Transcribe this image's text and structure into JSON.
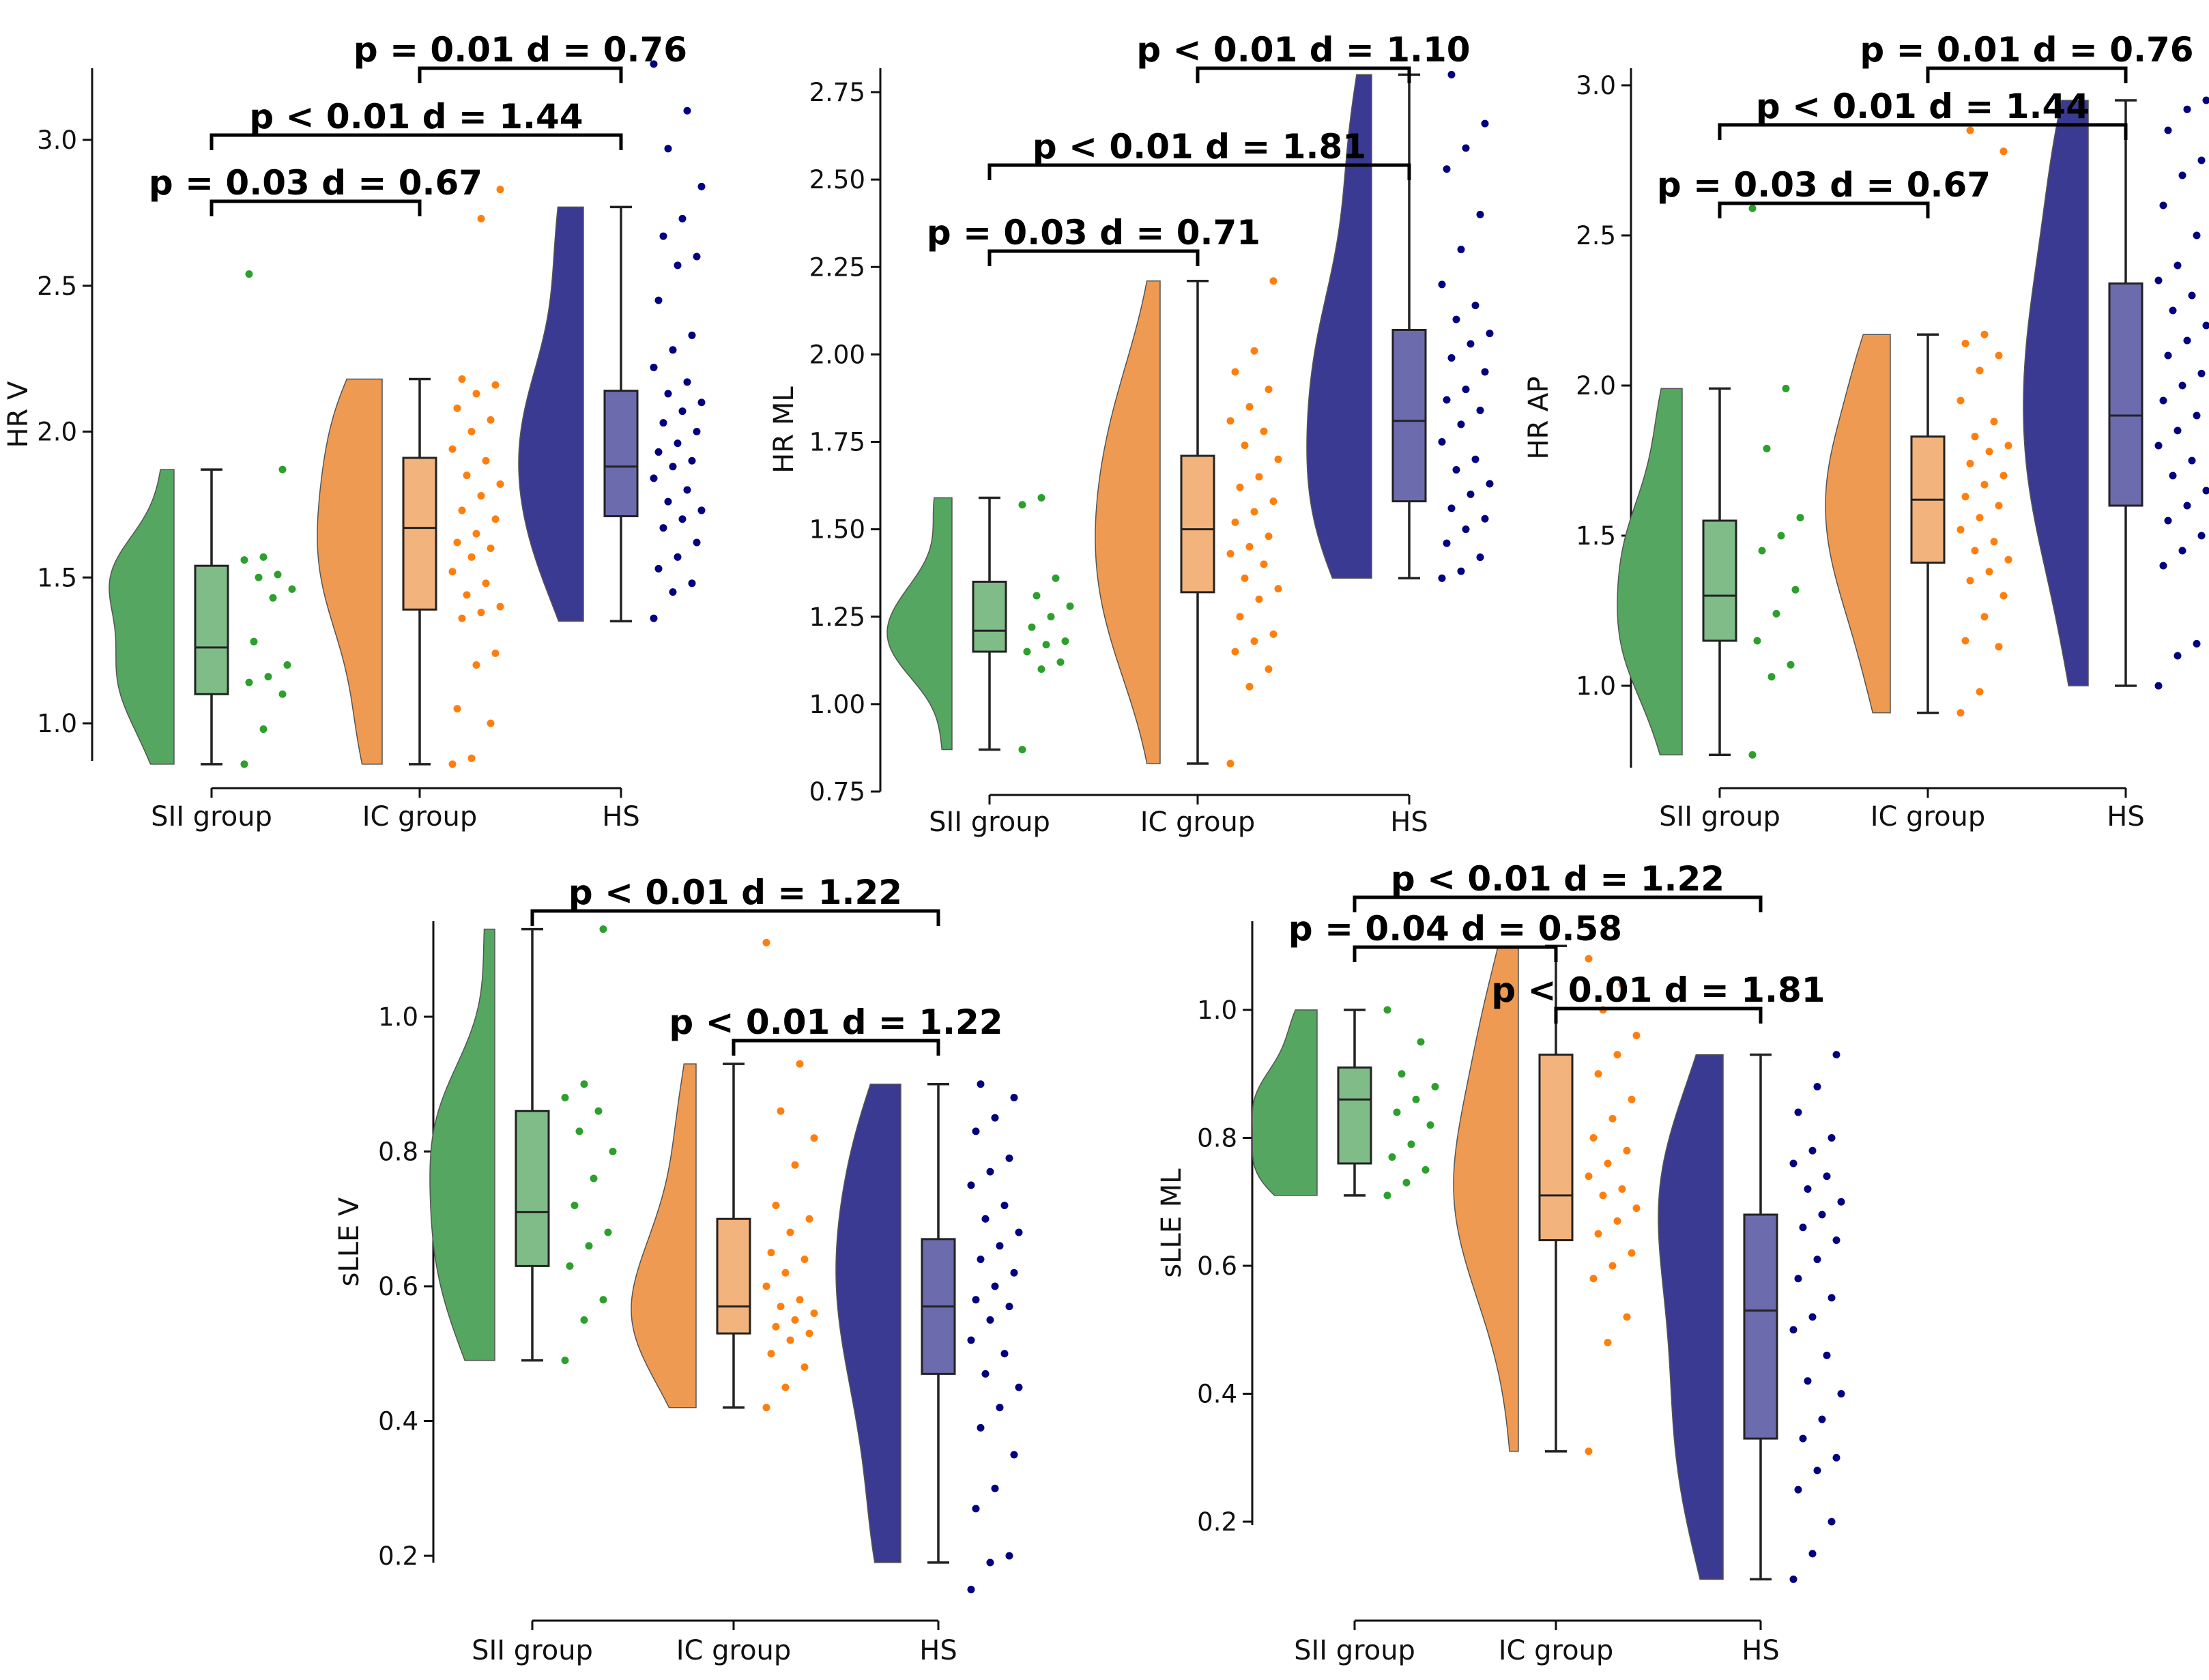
{
  "colors": {
    "SII group": "#55a660",
    "IC group": "#ef9a52",
    "HS": "#3a3a92",
    "SII group_point": "#2ca02c",
    "IC group_point": "#ff7f0e",
    "HS_point": "#000080"
  },
  "chart_data": [
    {
      "type": "raincloud",
      "ylabel": "HR V",
      "categories": [
        "SII group",
        "IC group",
        "HS"
      ],
      "yticks": [
        "1.0",
        "1.5",
        "2.0",
        "2.5",
        "3.0"
      ],
      "ylim": [
        0.85,
        3.25
      ],
      "box": [
        {
          "min": 0.86,
          "q1": 1.1,
          "median": 1.26,
          "q3": 1.54,
          "max": 1.87
        },
        {
          "min": 0.86,
          "q1": 1.39,
          "median": 1.67,
          "q3": 1.91,
          "max": 2.18
        },
        {
          "min": 1.35,
          "q1": 1.71,
          "median": 1.88,
          "q3": 2.14,
          "max": 2.77
        }
      ],
      "points": [
        [
          0.86,
          0.98,
          1.1,
          1.14,
          1.16,
          1.2,
          1.28,
          1.43,
          1.46,
          1.5,
          1.51,
          1.56,
          1.57,
          1.87,
          2.54
        ],
        [
          0.86,
          0.88,
          1.0,
          1.05,
          1.2,
          1.24,
          1.36,
          1.38,
          1.4,
          1.44,
          1.48,
          1.52,
          1.57,
          1.6,
          1.62,
          1.65,
          1.7,
          1.73,
          1.78,
          1.82,
          1.85,
          1.9,
          1.94,
          2.0,
          2.04,
          2.08,
          2.13,
          2.16,
          2.18,
          2.73,
          2.83
        ],
        [
          1.36,
          1.45,
          1.48,
          1.53,
          1.57,
          1.62,
          1.67,
          1.7,
          1.73,
          1.76,
          1.8,
          1.84,
          1.88,
          1.9,
          1.93,
          1.96,
          2.0,
          2.03,
          2.07,
          2.1,
          2.13,
          2.17,
          2.22,
          2.28,
          2.33,
          2.45,
          2.57,
          2.6,
          2.67,
          2.73,
          2.84,
          2.97,
          3.1,
          3.26
        ]
      ],
      "annotations": [
        {
          "text": "p = 0.03 d = 0.67",
          "from": 0,
          "to": 1
        },
        {
          "text": "p < 0.01 d = 1.44",
          "from": 0,
          "to": 2
        },
        {
          "text": "p = 0.01 d = 0.76",
          "from": 1,
          "to": 2
        }
      ]
    },
    {
      "type": "raincloud",
      "ylabel": "HR ML",
      "categories": [
        "SII group",
        "IC group",
        "HS"
      ],
      "yticks": [
        "0.75",
        "1.00",
        "1.25",
        "1.50",
        "1.75",
        "2.00",
        "2.25",
        "2.50",
        "2.75"
      ],
      "ylim": [
        0.75,
        2.8
      ],
      "box": [
        {
          "min": 0.87,
          "q1": 1.15,
          "median": 1.21,
          "q3": 1.35,
          "max": 1.59
        },
        {
          "min": 0.83,
          "q1": 1.32,
          "median": 1.5,
          "q3": 1.71,
          "max": 2.21
        },
        {
          "min": 1.36,
          "q1": 1.58,
          "median": 1.81,
          "q3": 2.07,
          "max": 2.8
        }
      ],
      "points": [
        [
          0.87,
          1.1,
          1.12,
          1.15,
          1.17,
          1.18,
          1.22,
          1.25,
          1.28,
          1.31,
          1.36,
          1.57,
          1.59
        ],
        [
          0.83,
          1.05,
          1.1,
          1.15,
          1.18,
          1.2,
          1.25,
          1.3,
          1.33,
          1.36,
          1.4,
          1.43,
          1.45,
          1.48,
          1.52,
          1.55,
          1.58,
          1.62,
          1.65,
          1.7,
          1.74,
          1.78,
          1.81,
          1.85,
          1.9,
          1.95,
          2.01,
          2.21
        ],
        [
          1.36,
          1.38,
          1.42,
          1.46,
          1.5,
          1.53,
          1.56,
          1.6,
          1.63,
          1.67,
          1.7,
          1.75,
          1.8,
          1.84,
          1.87,
          1.9,
          1.95,
          1.99,
          2.03,
          2.06,
          2.1,
          2.14,
          2.2,
          2.3,
          2.4,
          2.53,
          2.59,
          2.66,
          2.8
        ]
      ],
      "annotations": [
        {
          "text": "p = 0.03 d = 0.71",
          "from": 0,
          "to": 1
        },
        {
          "text": "p < 0.01 d = 1.81",
          "from": 0,
          "to": 2
        },
        {
          "text": "p < 0.01 d = 1.10",
          "from": 1,
          "to": 2
        }
      ]
    },
    {
      "type": "raincloud",
      "ylabel": "HR AP",
      "categories": [
        "SII group",
        "IC group",
        "HS"
      ],
      "yticks": [
        "1.0",
        "1.5",
        "2.0",
        "2.5",
        "3.0"
      ],
      "ylim": [
        0.77,
        3.0
      ],
      "box": [
        {
          "min": 0.77,
          "q1": 1.15,
          "median": 1.3,
          "q3": 1.55,
          "max": 1.99
        },
        {
          "min": 0.91,
          "q1": 1.41,
          "median": 1.62,
          "q3": 1.83,
          "max": 2.17
        },
        {
          "min": 1.0,
          "q1": 1.6,
          "median": 1.9,
          "q3": 2.34,
          "max": 2.95
        }
      ],
      "points": [
        [
          0.77,
          1.03,
          1.07,
          1.15,
          1.24,
          1.32,
          1.45,
          1.5,
          1.56,
          1.79,
          1.99,
          2.59
        ],
        [
          0.91,
          0.98,
          1.13,
          1.15,
          1.23,
          1.3,
          1.35,
          1.38,
          1.42,
          1.45,
          1.48,
          1.52,
          1.56,
          1.6,
          1.63,
          1.67,
          1.7,
          1.74,
          1.78,
          1.8,
          1.83,
          1.88,
          1.95,
          2.05,
          2.1,
          2.14,
          2.17,
          2.78,
          2.85
        ],
        [
          1.0,
          1.1,
          1.14,
          1.4,
          1.45,
          1.5,
          1.55,
          1.6,
          1.65,
          1.7,
          1.75,
          1.8,
          1.85,
          1.9,
          1.95,
          2.0,
          2.04,
          2.1,
          2.15,
          2.2,
          2.25,
          2.3,
          2.35,
          2.4,
          2.5,
          2.6,
          2.7,
          2.75,
          2.85,
          2.92,
          2.95
        ]
      ],
      "annotations": [
        {
          "text": "p = 0.03 d = 0.67",
          "from": 0,
          "to": 1
        },
        {
          "text": "p < 0.01 d = 1.44",
          "from": 0,
          "to": 2
        },
        {
          "text": "p = 0.01 d = 0.76",
          "from": 1,
          "to": 2
        }
      ]
    },
    {
      "type": "raincloud",
      "ylabel": "sLLE V",
      "categories": [
        "SII group",
        "IC group",
        "HS"
      ],
      "yticks": [
        "0.2",
        "0.4",
        "0.6",
        "0.8",
        "1.0"
      ],
      "ylim": [
        0.15,
        1.13
      ],
      "box": [
        {
          "min": 0.49,
          "q1": 0.63,
          "median": 0.71,
          "q3": 0.86,
          "max": 1.13
        },
        {
          "min": 0.42,
          "q1": 0.53,
          "median": 0.57,
          "q3": 0.7,
          "max": 0.93
        },
        {
          "min": 0.19,
          "q1": 0.47,
          "median": 0.57,
          "q3": 0.67,
          "max": 0.9
        }
      ],
      "points": [
        [
          0.49,
          0.55,
          0.58,
          0.63,
          0.66,
          0.68,
          0.72,
          0.76,
          0.8,
          0.83,
          0.86,
          0.88,
          0.9,
          1.13
        ],
        [
          0.42,
          0.45,
          0.48,
          0.5,
          0.52,
          0.53,
          0.54,
          0.55,
          0.56,
          0.57,
          0.58,
          0.6,
          0.62,
          0.64,
          0.65,
          0.68,
          0.7,
          0.72,
          0.78,
          0.82,
          0.86,
          0.93,
          1.11
        ],
        [
          0.15,
          0.19,
          0.2,
          0.27,
          0.3,
          0.35,
          0.39,
          0.42,
          0.45,
          0.47,
          0.5,
          0.52,
          0.55,
          0.57,
          0.58,
          0.6,
          0.62,
          0.64,
          0.66,
          0.68,
          0.7,
          0.72,
          0.75,
          0.77,
          0.79,
          0.83,
          0.85,
          0.88,
          0.9
        ]
      ],
      "annotations": [
        {
          "text": "p < 0.01 d = 1.22",
          "from": 1,
          "to": 2
        },
        {
          "text": "p < 0.01 d = 1.22",
          "from": 0,
          "to": 2
        }
      ]
    },
    {
      "type": "raincloud",
      "ylabel": "sLLE ML",
      "categories": [
        "SII group",
        "IC group",
        "HS"
      ],
      "yticks": [
        "0.2",
        "0.4",
        "0.6",
        "0.8",
        "1.0"
      ],
      "ylim": [
        0.11,
        1.1
      ],
      "box": [
        {
          "min": 0.71,
          "q1": 0.76,
          "median": 0.86,
          "q3": 0.91,
          "max": 1.0
        },
        {
          "min": 0.31,
          "q1": 0.64,
          "median": 0.71,
          "q3": 0.93,
          "max": 1.1
        },
        {
          "min": 0.11,
          "q1": 0.33,
          "median": 0.53,
          "q3": 0.68,
          "max": 0.93
        }
      ],
      "points": [
        [
          0.71,
          0.73,
          0.75,
          0.77,
          0.79,
          0.82,
          0.84,
          0.86,
          0.88,
          0.9,
          0.95,
          1.0
        ],
        [
          0.31,
          0.48,
          0.52,
          0.58,
          0.6,
          0.62,
          0.65,
          0.67,
          0.69,
          0.71,
          0.72,
          0.74,
          0.76,
          0.78,
          0.8,
          0.83,
          0.86,
          0.9,
          0.93,
          0.96,
          1.0,
          1.04,
          1.08
        ],
        [
          0.11,
          0.15,
          0.2,
          0.25,
          0.28,
          0.3,
          0.33,
          0.36,
          0.4,
          0.42,
          0.46,
          0.5,
          0.52,
          0.55,
          0.58,
          0.61,
          0.64,
          0.66,
          0.68,
          0.7,
          0.72,
          0.74,
          0.76,
          0.78,
          0.8,
          0.84,
          0.88,
          0.93
        ]
      ],
      "annotations": [
        {
          "text": "p < 0.01 d = 1.81",
          "from": 1,
          "to": 2
        },
        {
          "text": "p = 0.04 d = 0.58",
          "from": 0,
          "to": 1
        },
        {
          "text": "p < 0.01 d = 1.22",
          "from": 0,
          "to": 2
        }
      ]
    }
  ]
}
